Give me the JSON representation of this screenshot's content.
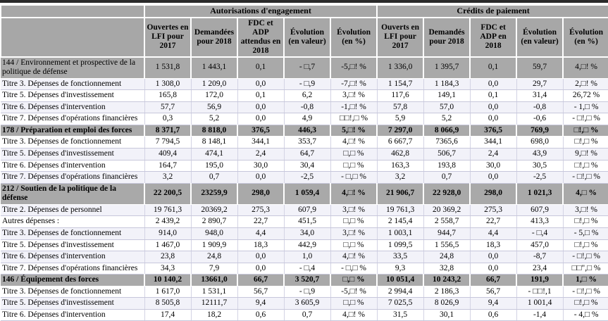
{
  "table": {
    "group_headers": [
      {
        "label": "Autorisations d'engagement"
      },
      {
        "label": "Crédits de paiement"
      }
    ],
    "columns": [
      "Ouvertes en LFI pour 2017",
      "Demandées pour 2018",
      "FDC et ADP attendus en 2018",
      "Évolution (en valeur)",
      "Évolution (en %)",
      "Ouverts en LFI pour 2017",
      "Demandés pour 2018",
      "FDC et ADP en 2018",
      "Évolution (en valeur)",
      "Évolution (en %)"
    ],
    "rows": [
      {
        "type": "block",
        "bold": false,
        "label": "144 / Environnement et prospective de la politique de défense",
        "values": [
          "1 531,8",
          "1 443,1",
          "0,1",
          "- □,7",
          "-5,□! %",
          "1 336,0",
          "1 395,7",
          "0,1",
          "59,7",
          "4,□! %"
        ]
      },
      {
        "type": "item",
        "label": "Titre 3. Dépenses de fonctionnement",
        "values": [
          "1 308,0",
          "1 209,0",
          "0,0",
          "- □,9",
          "-7,□! %",
          "1 154,7",
          "1 184,3",
          "0,0",
          "29,7",
          "2,□! %"
        ]
      },
      {
        "type": "item",
        "label": "Titre 5. Dépenses d'investissement",
        "values": [
          "165,8",
          "172,0",
          "0,1",
          "6,2",
          "3,□! %",
          "117,6",
          "149,1",
          "0,1",
          "31,4",
          "26,72 %"
        ]
      },
      {
        "type": "item",
        "label": "Titre 6. Dépenses d'intervention",
        "values": [
          "57,7",
          "56,9",
          "0,0",
          "-0,8",
          "-1,□! %",
          "57,8",
          "57,0",
          "0,0",
          "-0,8",
          "- 1,□ %"
        ]
      },
      {
        "type": "item",
        "label": "Titre 7. Dépenses d'opérations financières",
        "values": [
          "0,3",
          "5,2",
          "0,0",
          "4,9",
          "□□!,□ %",
          "5,9",
          "5,2",
          "0,0",
          "-0,6",
          "- □!,□ %"
        ]
      },
      {
        "type": "block",
        "bold": true,
        "label": "178 / Préparation et emploi des forces",
        "values": [
          "8 371,7",
          "8 818,0",
          "376,5",
          "446,3",
          "5,□! %",
          "7 297,0",
          "8 066,9",
          "376,5",
          "769,9",
          "□!,□ %"
        ]
      },
      {
        "type": "item",
        "label": "Titre 3. Dépenses de fonctionnement",
        "values": [
          "7 794,5",
          "8 148,1",
          "344,1",
          "353,7",
          "4,□! %",
          "6 667,7",
          "7365,6",
          "344,1",
          "698,0",
          "□!,□ %"
        ]
      },
      {
        "type": "item",
        "label": "Titre 5. Dépenses d'investissement",
        "values": [
          "409,4",
          "474,1",
          "2,4",
          "64,7",
          "□,□ %",
          "462,8",
          "506,7",
          "2,4",
          "43,9",
          "9,□! %"
        ]
      },
      {
        "type": "item",
        "label": "Titre 6. Dépenses d'intervention",
        "values": [
          "164,7",
          "195,0",
          "30,0",
          "30,4",
          "□,□ %",
          "163,3",
          "193,8",
          "30,0",
          "30,5",
          "□!,□ %"
        ]
      },
      {
        "type": "item",
        "label": "Titre 7. Dépenses d'opérations financières",
        "values": [
          "3,2",
          "0,7",
          "0,0",
          "-2,5",
          "- □,□ %",
          "3,2",
          "0,7",
          "0,0",
          "-2,5",
          "- □!,□ %"
        ]
      },
      {
        "type": "block",
        "bold": true,
        "label": "212 / Soutien de la politique de la défense",
        "values": [
          "22 200,5",
          "23259,9",
          "298,0",
          "1 059,4",
          "4,□! %",
          "21 906,7",
          "22 928,0",
          "298,0",
          "1 021,3",
          "4,□ %"
        ]
      },
      {
        "type": "item",
        "label": "Titre 2. Dépenses de personnel",
        "values": [
          "19 761,3",
          "20369,2",
          "275,3",
          "607,9",
          "3,□! %",
          "19 761,3",
          "20 369,2",
          "275,3",
          "607,9",
          "3,□! %"
        ]
      },
      {
        "type": "item",
        "label": "Autres dépenses :",
        "values": [
          "2 439,2",
          "2 890,7",
          "22,7",
          "451,5",
          "□,□ %",
          "2 145,4",
          "2 558,7",
          "22,7",
          "413,3",
          "□!,□ %"
        ]
      },
      {
        "type": "item",
        "label": "Titre 3. Dépenses de fonctionnement",
        "values": [
          "914,0",
          "948,0",
          "4,4",
          "34,0",
          "3,□! %",
          "1 003,1",
          "944,7",
          "4,4",
          "- □,4",
          "- 5,□ %"
        ]
      },
      {
        "type": "item",
        "label": "Titre 5. Dépenses d'investissement",
        "values": [
          "1 467,0",
          "1 909,9",
          "18,3",
          "442,9",
          "□,□ %",
          "1 099,5",
          "1 556,5",
          "18,3",
          "457,0",
          "□!,□ %"
        ]
      },
      {
        "type": "item",
        "label": "Titre 6. Dépenses d'intervention",
        "values": [
          "23,8",
          "24,8",
          "0,0",
          "1,0",
          "4,□! %",
          "33,5",
          "24,8",
          "0,0",
          "-8,7",
          "- □!,□ %"
        ]
      },
      {
        "type": "item",
        "label": "Titre 7. Dépenses d'opérations financières",
        "values": [
          "34,3",
          "7,9",
          "0,0",
          "- □,4",
          "- □,□ %",
          "9,3",
          "32,8",
          "0,0",
          "23,4",
          "□□\",□ %"
        ]
      },
      {
        "type": "block",
        "bold": true,
        "label": "146 / Équipement des forces",
        "values": [
          "10 140,2",
          "13661,0",
          "66,7",
          "3 520,7",
          "□,□ %",
          "10 051,4",
          "10 243,2",
          "66,7",
          "191,9",
          "1,□ %"
        ]
      },
      {
        "type": "item",
        "label": "Titre 3. Dépenses de fonctionnement",
        "values": [
          "1 617,0",
          "1 531,1",
          "56,7",
          "- □,9",
          "-5,□! %",
          "2 994,4",
          "2 186,3",
          "56,7",
          "- □□!,1",
          "- □!,□ %"
        ]
      },
      {
        "type": "item",
        "label": "Titre 5. Dépenses d'investissement",
        "values": [
          "8 505,8",
          "12111,7",
          "9,4",
          "3 605,9",
          "□,□ %",
          "7 025,5",
          "8 026,9",
          "9,4",
          "1 001,4",
          "□!,□ %"
        ]
      },
      {
        "type": "item",
        "label": "Titre 6. Dépenses d'intervention",
        "values": [
          "17,4",
          "18,2",
          "0,6",
          "0,7",
          "4,□! %",
          "31,5",
          "30,1",
          "0,6",
          "-1,4",
          "- 4,□ %"
        ]
      }
    ]
  }
}
